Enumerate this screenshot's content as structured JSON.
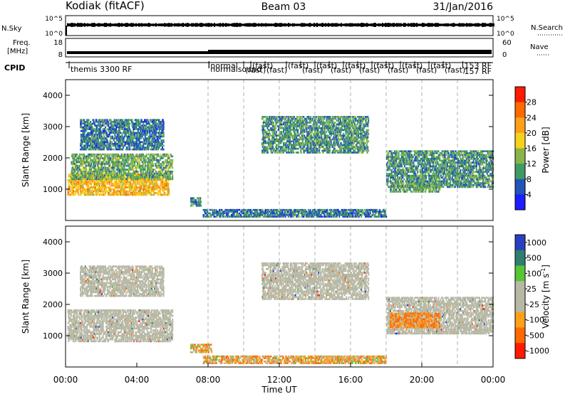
{
  "header": {
    "station": "Kodiak (fitACF)",
    "beam": "Beam 03",
    "date": "31/Jan/2016"
  },
  "strips": {
    "nsky_label": "N.Sky",
    "nsearch_label": "N.Search",
    "freq_label_line1": "Freq.",
    "freq_label_line2": "[MHz]",
    "nave_label": "Nave",
    "cpid_label": "CPID",
    "ticks_left_top": [
      "10^5",
      "10^0"
    ],
    "ticks_right_top": [
      "10^5",
      "10^0"
    ],
    "ticks_left_freq": [
      "18",
      "8"
    ],
    "ticks_right_nave": [
      "60",
      "0"
    ],
    "cpid_entries": [
      {
        "text": "themis 3300 RF",
        "time": 0.2
      },
      {
        "text": "normal",
        "time": 8.05
      },
      {
        "text": "normalsound",
        "time": 8.05
      },
      {
        "text": "(fast)",
        "time": 10.0
      },
      {
        "text": "(fast)",
        "time": 10.4
      },
      {
        "text": "(fast)",
        "time": 11.2
      },
      {
        "text": "(fast)",
        "time": 12.4
      },
      {
        "text": "(fast)",
        "time": 13.2
      },
      {
        "text": "(fast)",
        "time": 14.0
      },
      {
        "text": "(fast)",
        "time": 14.8
      },
      {
        "text": "(fast)",
        "time": 15.6
      },
      {
        "text": "(fast)",
        "time": 16.4
      },
      {
        "text": "(fast)",
        "time": 17.2
      },
      {
        "text": "(fast)",
        "time": 18.0
      },
      {
        "text": "(fast)",
        "time": 18.8
      },
      {
        "text": "(fast)",
        "time": 19.6
      },
      {
        "text": "(fast)",
        "time": 20.4
      },
      {
        "text": "(fast)",
        "time": 21.2
      },
      {
        "text": "153 RF",
        "time": 22.3
      },
      {
        "text": "157 RF",
        "time": 22.3
      }
    ]
  },
  "power_colorbar": {
    "title": "Power [dB]",
    "labels": [
      "28",
      "24",
      "20",
      "16",
      "12",
      "8",
      "4"
    ],
    "colors": [
      "#ff1a00",
      "#ff6a00",
      "#ff9f1a",
      "#f7d21a",
      "#8ab44b",
      "#3f9b63",
      "#2155b8",
      "#1d1dff"
    ]
  },
  "velocity_colorbar": {
    "title": "Velocity [m s^-1]",
    "labels": [
      "1000",
      "500",
      "100",
      "25",
      "-25",
      "-100",
      "-500",
      "-1000"
    ],
    "colors": [
      "#2a3fbf",
      "#2e7f6e",
      "#56c636",
      "#b8b8a6",
      "#b8b8a6",
      "#ff9f1a",
      "#ff6a00",
      "#ff1a00"
    ]
  },
  "colors": {
    "ground_scatter": "#b8b8b8",
    "gridline": "#b0b0b0"
  },
  "chart_data": [
    {
      "type": "heatmap",
      "title": "Power",
      "ylabel": "Slant Range [km]",
      "xlabel": "Time UT",
      "xlim": [
        0,
        24
      ],
      "ylim": [
        0,
        4500
      ],
      "yticks": [
        "1000",
        "2000",
        "3000",
        "4000"
      ],
      "xticks": [
        "00:00",
        "04:00",
        "08:00",
        "12:00",
        "16:00",
        "20:00",
        "00:00"
      ],
      "colorbar_label": "Power [dB]",
      "regions": [
        {
          "t0": 0.1,
          "t1": 5.8,
          "r0": 850,
          "r1": 1550,
          "value": 20
        },
        {
          "t0": 0.3,
          "t1": 6.0,
          "r0": 1350,
          "r1": 2200,
          "value": 12
        },
        {
          "t0": 0.8,
          "t1": 5.5,
          "r0": 2300,
          "r1": 3300,
          "value": 8
        },
        {
          "t0": 7.0,
          "t1": 7.6,
          "r0": 500,
          "r1": 800,
          "value": 8
        },
        {
          "t0": 7.7,
          "t1": 18.0,
          "r0": 150,
          "r1": 420,
          "value": 8
        },
        {
          "t0": 11.0,
          "t1": 17.0,
          "r0": 2200,
          "r1": 3400,
          "value": 10
        },
        {
          "t0": 18.0,
          "t1": 24.0,
          "r0": 1100,
          "r1": 2300,
          "value": 10
        },
        {
          "t0": 18.2,
          "t1": 21.0,
          "r0": 950,
          "r1": 1250,
          "value": 12
        }
      ]
    },
    {
      "type": "heatmap",
      "title": "Velocity",
      "ylabel": "Slant Range [km]",
      "xlabel": "Time UT",
      "xlim": [
        0,
        24
      ],
      "ylim": [
        0,
        4500
      ],
      "yticks": [
        "1000",
        "2000",
        "3000",
        "4000"
      ],
      "xticks": [
        "00:00",
        "04:00",
        "08:00",
        "12:00",
        "16:00",
        "20:00",
        "00:00"
      ],
      "colorbar_label": "Velocity [m s^-1]",
      "regions": [
        {
          "t0": 0.1,
          "t1": 6.0,
          "r0": 850,
          "r1": 1900,
          "value": 0
        },
        {
          "t0": 0.8,
          "t1": 5.5,
          "r0": 2300,
          "r1": 3300,
          "value": 0
        },
        {
          "t0": 7.0,
          "t1": 8.2,
          "r0": 500,
          "r1": 800,
          "value": -100
        },
        {
          "t0": 7.7,
          "t1": 18.0,
          "r0": 150,
          "r1": 420,
          "value": -100
        },
        {
          "t0": 11.0,
          "t1": 17.0,
          "r0": 2200,
          "r1": 3400,
          "value": 0
        },
        {
          "t0": 18.0,
          "t1": 24.0,
          "r0": 1100,
          "r1": 2300,
          "value": 0
        },
        {
          "t0": 18.2,
          "t1": 21.0,
          "r0": 1300,
          "r1": 1800,
          "value": -200
        }
      ]
    }
  ]
}
